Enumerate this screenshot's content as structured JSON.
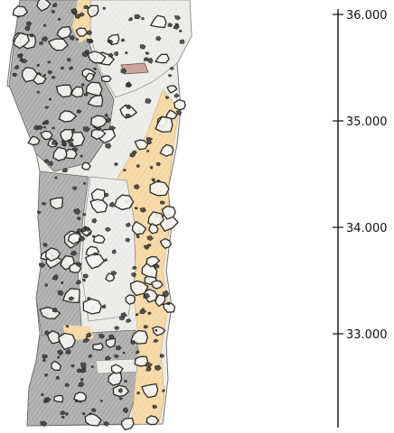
{
  "depth_scale": {
    "ticks": [
      {
        "label": "36.000",
        "value": 36.0
      },
      {
        "label": "35.000",
        "value": 35.0
      },
      {
        "label": "34.000",
        "value": 34.0
      },
      {
        "label": "33.000",
        "value": 33.0
      }
    ],
    "range": [
      32.1,
      36.0
    ]
  },
  "colors": {
    "dark_facies": "#b9b9b9",
    "light_facies": "#ededeb",
    "weathered_facies": "#f4d49b",
    "clast_outline": "#2a2a2a",
    "scale_line": "#111111"
  }
}
